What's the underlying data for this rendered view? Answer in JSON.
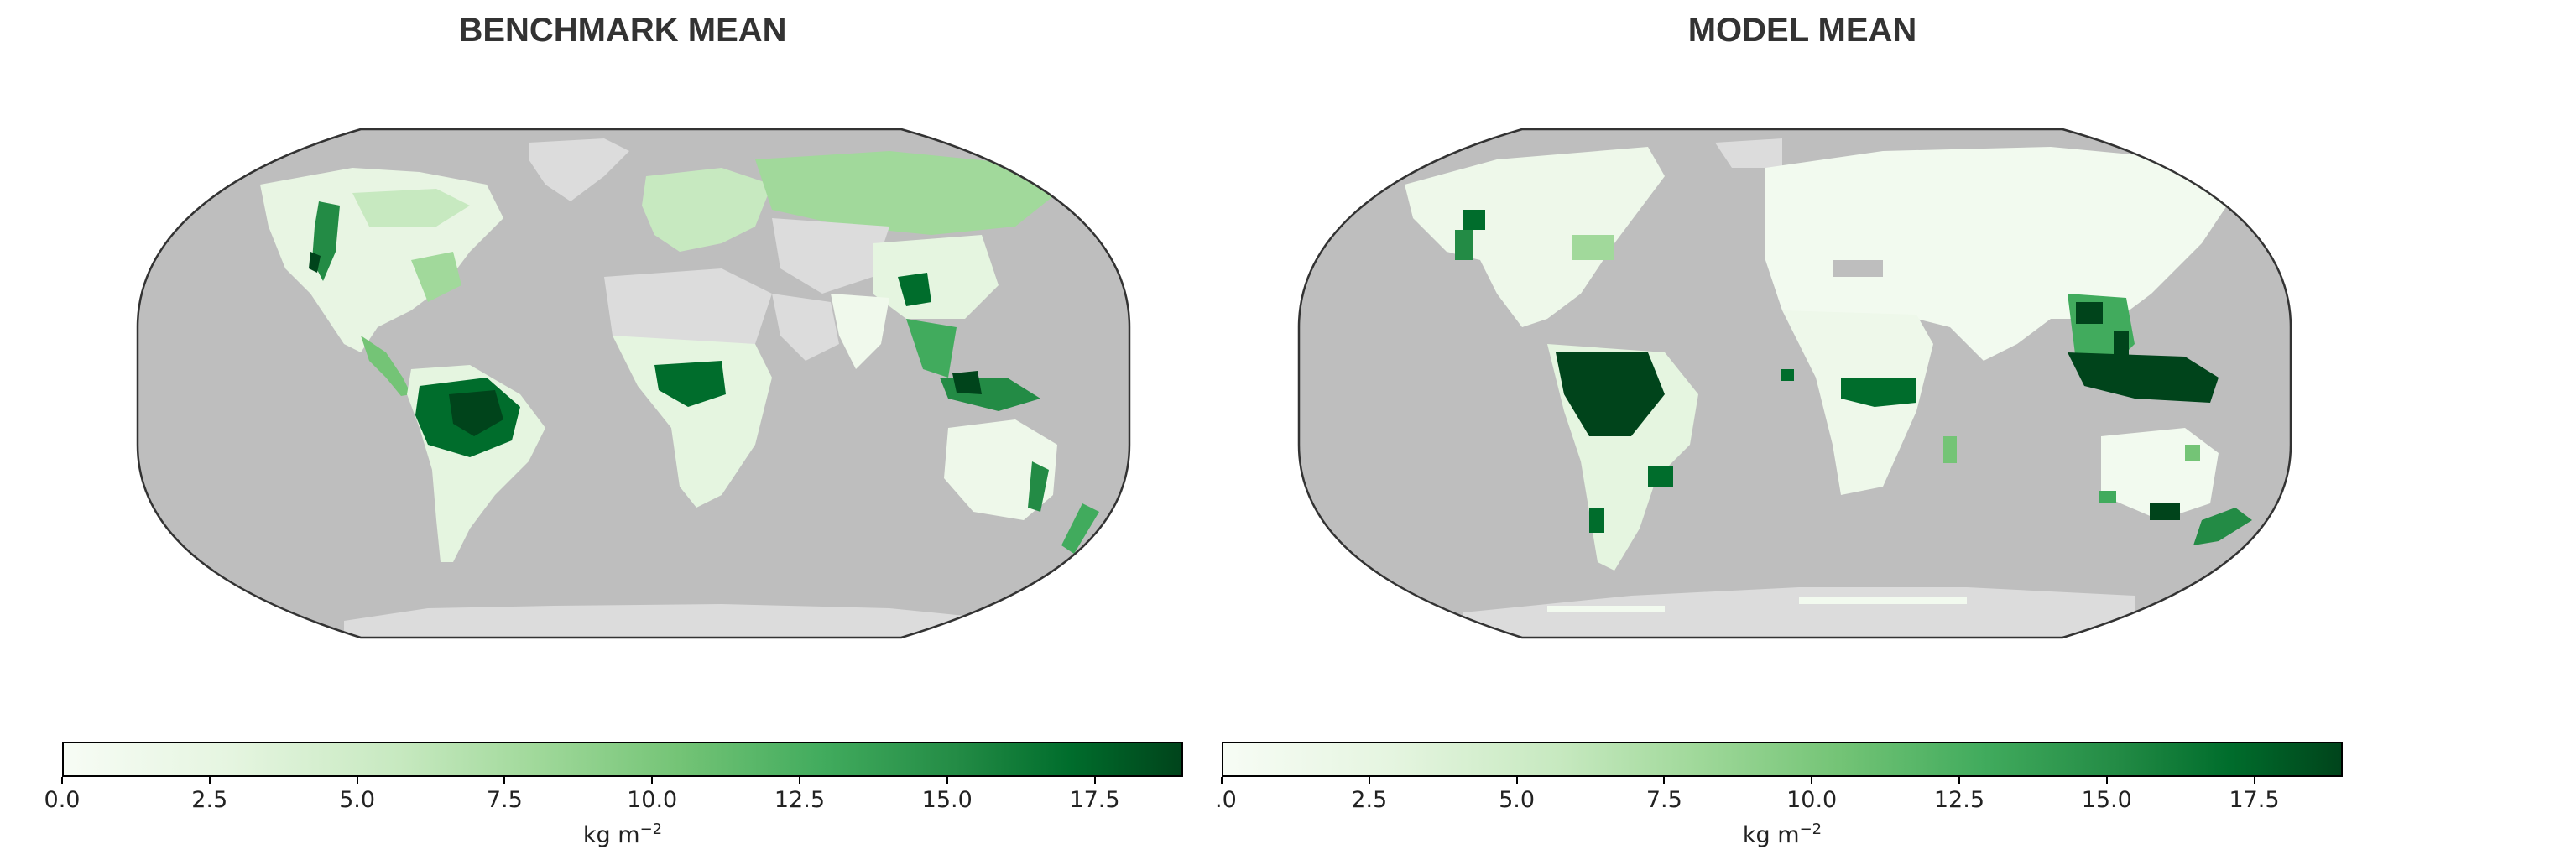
{
  "panels": [
    {
      "title": "BENCHMARK MEAN",
      "unit_base": "kg m",
      "unit_exp": "−2"
    },
    {
      "title": "MODEL MEAN",
      "unit_base": "kg m",
      "unit_exp": "−2"
    }
  ],
  "colorbar": {
    "min": 0.0,
    "max": 19.0,
    "ticks": [
      0.0,
      2.5,
      5.0,
      7.5,
      10.0,
      12.5,
      15.0,
      17.5
    ],
    "tick_labels_left": [
      "0.0",
      "2.5",
      "5.0",
      "7.5",
      "10.0",
      "12.5",
      "15.0",
      "17.5"
    ],
    "tick_labels_right": [
      ".0",
      "2.5",
      "5.0",
      "7.5",
      "10.0",
      "12.5",
      "15.0",
      "17.5"
    ],
    "colors": [
      "#f7fcf5",
      "#e5f5e0",
      "#c7e9c0",
      "#a1d99b",
      "#74c476",
      "#41ab5d",
      "#238b45",
      "#006d2c",
      "#00441b"
    ]
  },
  "map_colors": {
    "ocean": "#bebebe",
    "nodata_land": "#dcdcdc",
    "outline": "#333333"
  }
}
